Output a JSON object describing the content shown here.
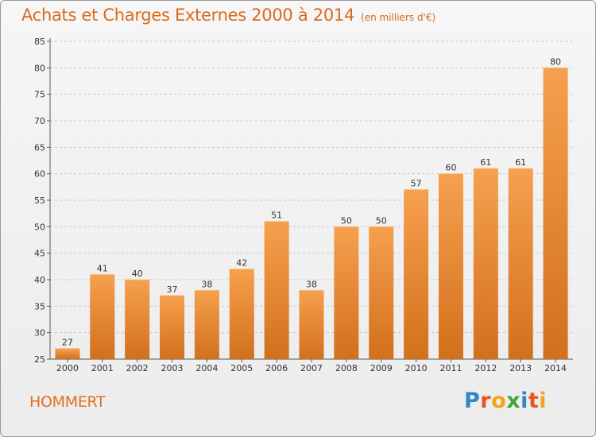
{
  "header": {
    "title": "Achats et Charges Externes 2000 à 2014",
    "subtitle": "(en milliers d'€)"
  },
  "footer": {
    "city": "HOMMERT",
    "brand_letters": [
      "P",
      "r",
      "o",
      "x",
      "i",
      "t",
      "i"
    ],
    "brand_colors": [
      "#2f87c8",
      "#e5561e",
      "#f2a51a",
      "#49a33b",
      "#2f87c8",
      "#e5561e",
      "#f2a51a"
    ]
  },
  "colors": {
    "bar_light": "#f6a04e",
    "bar_dark": "#d2701c",
    "title": "#d96a1c",
    "grid": "#c8c8c8"
  },
  "chart_data": {
    "type": "bar",
    "title": "Achats et Charges Externes 2000 à 2014",
    "subtitle": "(en milliers d'€)",
    "categories": [
      "2000",
      "2001",
      "2002",
      "2003",
      "2004",
      "2005",
      "2006",
      "2007",
      "2008",
      "2009",
      "2010",
      "2011",
      "2012",
      "2013",
      "2014"
    ],
    "values": [
      27,
      41,
      40,
      37,
      38,
      42,
      51,
      38,
      50,
      50,
      57,
      60,
      61,
      61,
      80
    ],
    "ylim": [
      25,
      85
    ],
    "yticks": [
      25,
      30,
      35,
      40,
      45,
      50,
      55,
      60,
      65,
      70,
      75,
      80,
      85
    ],
    "grid": "horizontal dashed",
    "xlabel": "",
    "ylabel": ""
  }
}
